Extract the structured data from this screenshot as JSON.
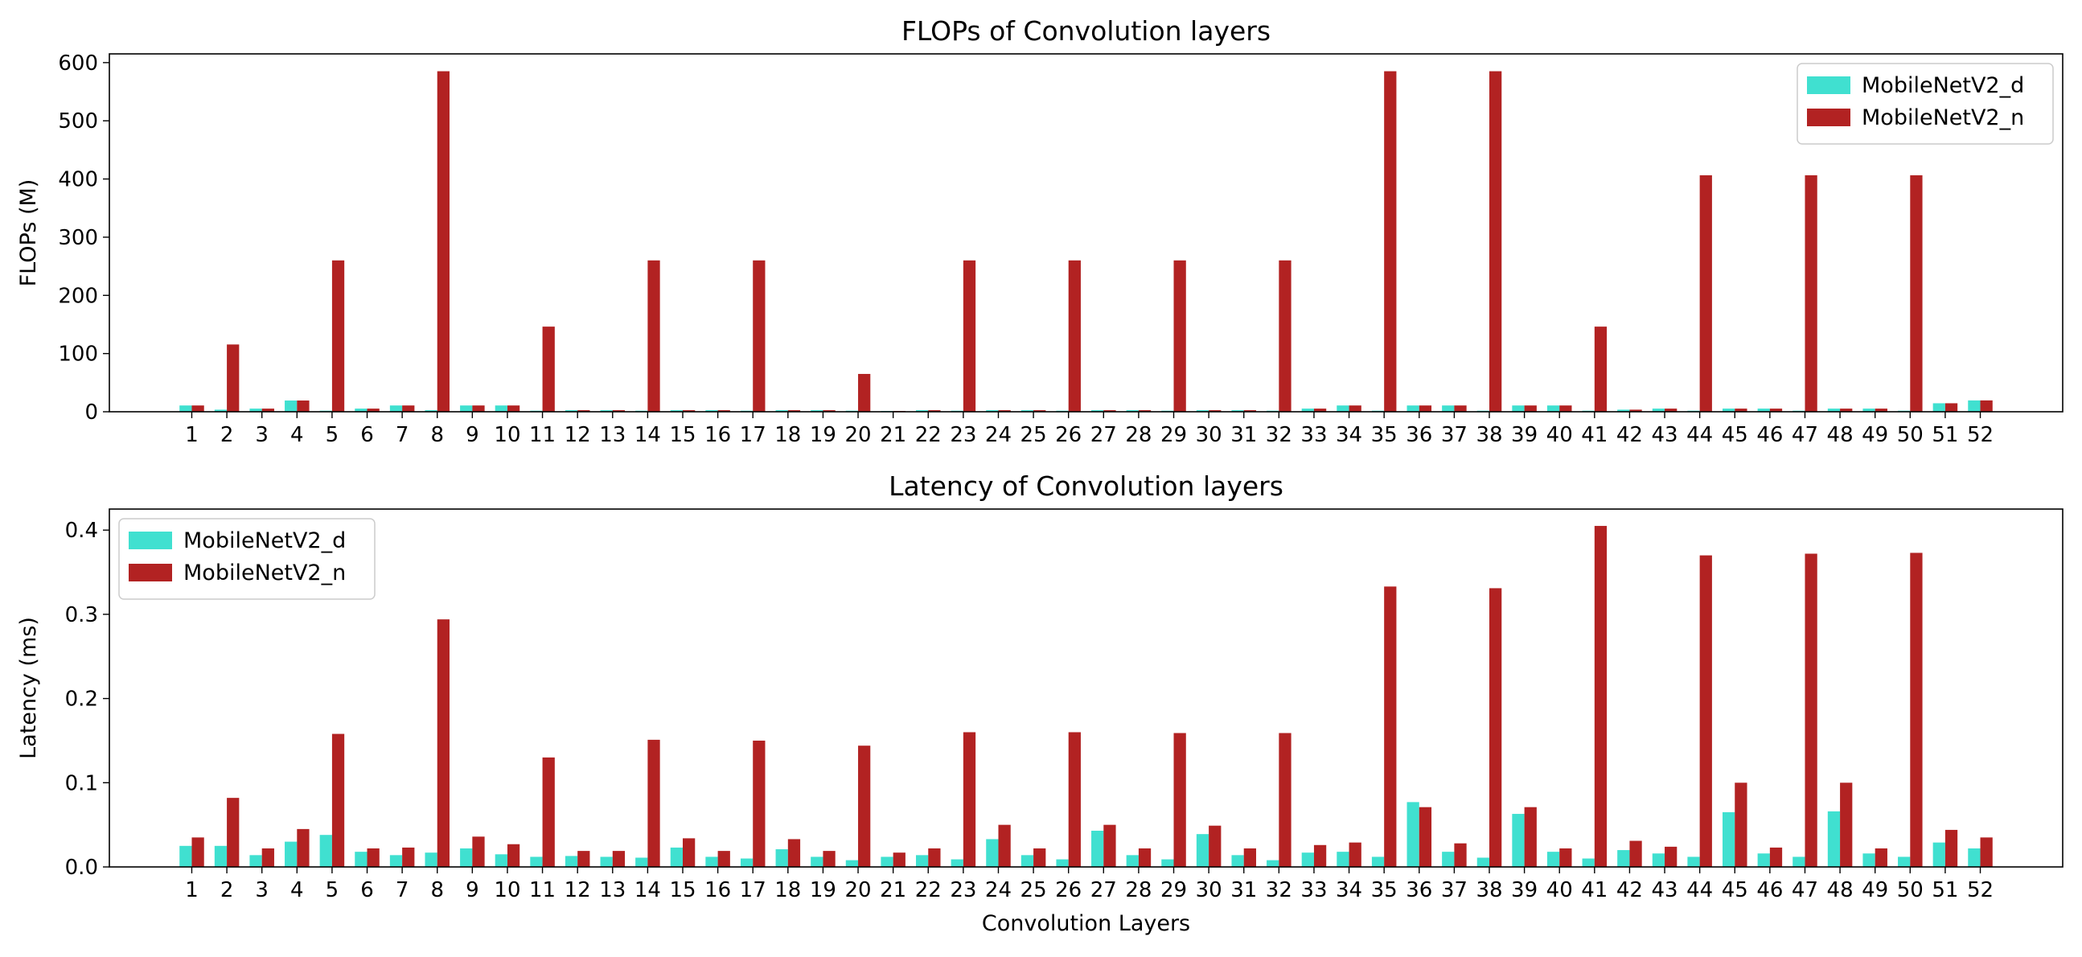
{
  "colors": {
    "d": "#40e0d0",
    "n": "#b22222"
  },
  "chart_data": [
    {
      "type": "bar",
      "title": "FLOPs of Convolution layers",
      "xlabel": "",
      "ylabel": "FLOPs (M)",
      "ylim": [
        0,
        615
      ],
      "yticks": [
        0,
        100,
        200,
        300,
        400,
        500,
        600
      ],
      "legend_loc": "top-right",
      "categories": [
        "1",
        "2",
        "3",
        "4",
        "5",
        "6",
        "7",
        "8",
        "9",
        "10",
        "11",
        "12",
        "13",
        "14",
        "15",
        "16",
        "17",
        "18",
        "19",
        "20",
        "21",
        "22",
        "23",
        "24",
        "25",
        "26",
        "27",
        "28",
        "29",
        "30",
        "31",
        "32",
        "33",
        "34",
        "35",
        "36",
        "37",
        "38",
        "39",
        "40",
        "41",
        "42",
        "43",
        "44",
        "45",
        "46",
        "47",
        "48",
        "49",
        "50",
        "51",
        "52"
      ],
      "series": [
        {
          "name": "MobileNetV2_d",
          "color": "#40e0d0",
          "values": [
            10.8,
            3.6,
            5.4,
            19.3,
            1.8,
            5.4,
            10.8,
            2.7,
            10.8,
            10.8,
            1.8,
            2.7,
            2.7,
            1.8,
            2.7,
            2.7,
            1.8,
            2.7,
            2.7,
            1.8,
            1.4,
            2.7,
            1.8,
            2.7,
            2.7,
            1.8,
            2.7,
            2.7,
            1.8,
            2.7,
            2.7,
            1.8,
            5.4,
            10.8,
            1.8,
            10.8,
            10.8,
            1.8,
            10.8,
            10.8,
            1.8,
            3.6,
            5.4,
            1.8,
            5.4,
            5.4,
            1.8,
            5.4,
            5.4,
            1.8,
            14.6,
            19.5
          ]
        },
        {
          "name": "MobileNetV2_n",
          "color": "#b22222",
          "values": [
            10.8,
            115.6,
            5.4,
            19.3,
            260.1,
            5.4,
            10.8,
            585.2,
            10.8,
            10.8,
            146.3,
            2.7,
            2.7,
            260.1,
            2.7,
            2.7,
            260.1,
            2.7,
            2.7,
            65.0,
            1.4,
            2.7,
            260.1,
            2.7,
            2.7,
            260.1,
            2.7,
            2.7,
            260.1,
            2.7,
            2.7,
            260.1,
            5.4,
            10.8,
            585.2,
            10.8,
            10.8,
            585.2,
            10.8,
            10.8,
            146.3,
            3.6,
            5.4,
            406.4,
            5.4,
            5.4,
            406.4,
            5.4,
            5.4,
            406.4,
            14.6,
            19.5
          ]
        }
      ]
    },
    {
      "type": "bar",
      "title": "Latency of Convolution layers",
      "xlabel": "Convolution Layers",
      "ylabel": "Latency (ms)",
      "ylim": [
        0,
        0.425
      ],
      "yticks": [
        0.0,
        0.1,
        0.2,
        0.3,
        0.4
      ],
      "legend_loc": "top-left",
      "categories": [
        "1",
        "2",
        "3",
        "4",
        "5",
        "6",
        "7",
        "8",
        "9",
        "10",
        "11",
        "12",
        "13",
        "14",
        "15",
        "16",
        "17",
        "18",
        "19",
        "20",
        "21",
        "22",
        "23",
        "24",
        "25",
        "26",
        "27",
        "28",
        "29",
        "30",
        "31",
        "32",
        "33",
        "34",
        "35",
        "36",
        "37",
        "38",
        "39",
        "40",
        "41",
        "42",
        "43",
        "44",
        "45",
        "46",
        "47",
        "48",
        "49",
        "50",
        "51",
        "52"
      ],
      "series": [
        {
          "name": "MobileNetV2_d",
          "color": "#40e0d0",
          "values": [
            0.025,
            0.025,
            0.014,
            0.03,
            0.038,
            0.018,
            0.014,
            0.017,
            0.022,
            0.015,
            0.012,
            0.013,
            0.012,
            0.011,
            0.023,
            0.012,
            0.01,
            0.021,
            0.012,
            0.008,
            0.012,
            0.014,
            0.009,
            0.033,
            0.014,
            0.009,
            0.043,
            0.014,
            0.009,
            0.039,
            0.014,
            0.008,
            0.017,
            0.018,
            0.012,
            0.077,
            0.018,
            0.011,
            0.063,
            0.018,
            0.01,
            0.02,
            0.016,
            0.012,
            0.065,
            0.016,
            0.012,
            0.066,
            0.016,
            0.012,
            0.029,
            0.022
          ]
        },
        {
          "name": "MobileNetV2_n",
          "color": "#b22222",
          "values": [
            0.035,
            0.082,
            0.022,
            0.045,
            0.158,
            0.022,
            0.023,
            0.294,
            0.036,
            0.027,
            0.13,
            0.019,
            0.019,
            0.151,
            0.034,
            0.019,
            0.15,
            0.033,
            0.019,
            0.144,
            0.017,
            0.022,
            0.16,
            0.05,
            0.022,
            0.16,
            0.05,
            0.022,
            0.159,
            0.049,
            0.022,
            0.159,
            0.026,
            0.029,
            0.333,
            0.071,
            0.028,
            0.331,
            0.071,
            0.022,
            0.405,
            0.031,
            0.024,
            0.37,
            0.1,
            0.023,
            0.372,
            0.1,
            0.022,
            0.373,
            0.044,
            0.035
          ]
        }
      ]
    }
  ]
}
